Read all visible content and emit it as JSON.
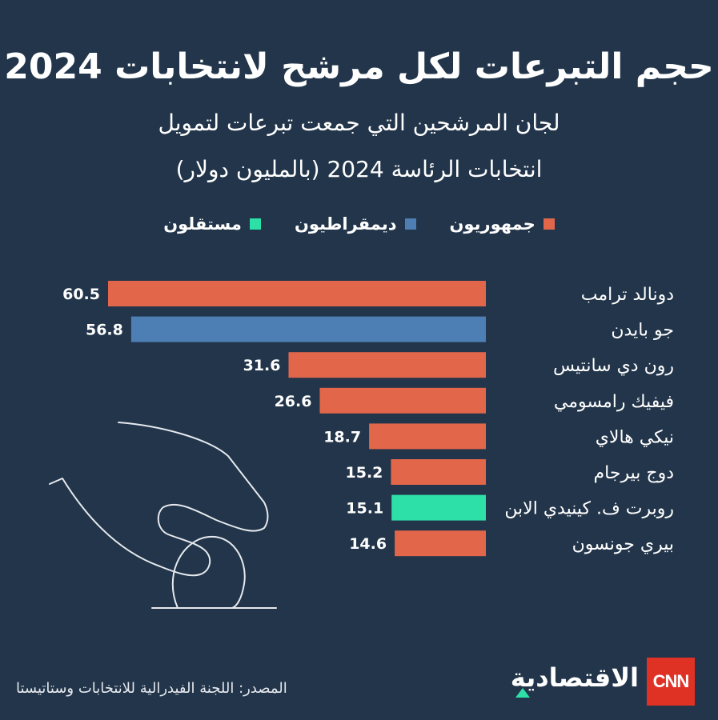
{
  "title": "حجم التبرعات لكل مرشح لانتخابات 2024",
  "subtitle_line1": "لجان المرشحين التي جمعت تبرعات لتمويل",
  "subtitle_line2": "انتخابات الرئاسة 2024 (بالمليون دولار)",
  "legend": [
    {
      "label": "جمهوريون",
      "color": "#e2664a"
    },
    {
      "label": "ديمقراطيون",
      "color": "#4d7fb5"
    },
    {
      "label": "مستقلون",
      "color": "#2de0a7"
    }
  ],
  "source": "المصدر: اللجنة الفيدرالية للانتخابات وستاتيستا",
  "logo": {
    "brand": "CNN",
    "text": "الاقتصادية"
  },
  "chart_data": {
    "type": "bar",
    "orientation": "horizontal",
    "categories": [
      "دونالد ترامب",
      "جو بايدن",
      "رون دي سانتيس",
      "فيفيك رامسومي",
      "نيكي هالاي",
      "دوج بيرجام",
      "روبرت ف. كينيدي الابن",
      "بيري جونسون"
    ],
    "values": [
      60.5,
      56.8,
      31.6,
      26.6,
      18.7,
      15.2,
      15.1,
      14.6
    ],
    "value_labels": [
      "60.5",
      "56.8",
      "31.6",
      "26.6",
      "18.7",
      "15.2",
      "15.1",
      "14.6"
    ],
    "groups": [
      "جمهوريون",
      "ديمقراطيون",
      "جمهوريون",
      "جمهوريون",
      "جمهوريون",
      "جمهوريون",
      "مستقلون",
      "جمهوريون"
    ],
    "colors": [
      "#e2664a",
      "#4d7fb5",
      "#e2664a",
      "#e2664a",
      "#e2664a",
      "#e2664a",
      "#2de0a7",
      "#e2664a"
    ],
    "xlim": [
      0,
      60.5
    ],
    "grid": false,
    "legend_position": "top"
  }
}
